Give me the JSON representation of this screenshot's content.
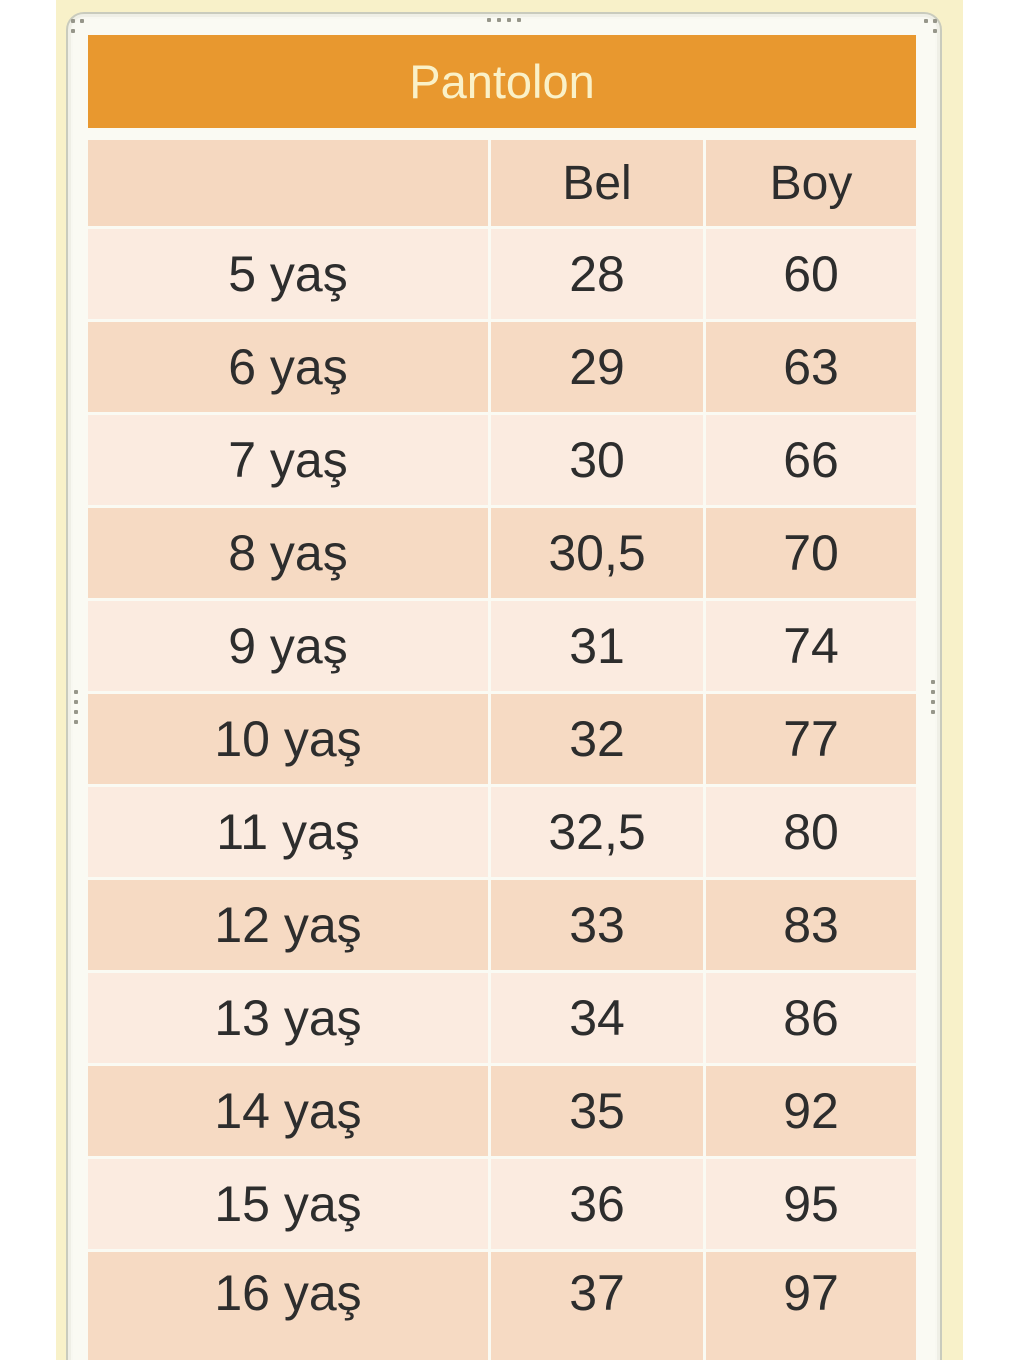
{
  "colors": {
    "accent_orange": "#e8982f",
    "title_text": "#faf1c8",
    "row_light": "#fbebe0",
    "row_dark": "#f6dac3",
    "header_row": "#f5d8c0",
    "page_band_yellow": "#f8f1c9",
    "frame_border": "#c9cbbd",
    "body_text": "#2d2d2d"
  },
  "frame": {
    "handles": [
      "top-left-corner",
      "top-center",
      "top-right-corner",
      "left-middle",
      "right-middle"
    ]
  },
  "table": {
    "title": "Pantolon",
    "columns": {
      "age": "",
      "bel": "Bel",
      "boy": "Boy"
    },
    "rows": [
      {
        "age": "5 yaş",
        "bel": "28",
        "boy": "60"
      },
      {
        "age": "6 yaş",
        "bel": "29",
        "boy": "63"
      },
      {
        "age": "7 yaş",
        "bel": "30",
        "boy": "66"
      },
      {
        "age": "8 yaş",
        "bel": "30,5",
        "boy": "70"
      },
      {
        "age": "9 yaş",
        "bel": "31",
        "boy": "74"
      },
      {
        "age": "10 yaş",
        "bel": "32",
        "boy": "77"
      },
      {
        "age": "11 yaş",
        "bel": "32,5",
        "boy": "80"
      },
      {
        "age": "12 yaş",
        "bel": "33",
        "boy": "83"
      },
      {
        "age": "13 yaş",
        "bel": "34",
        "boy": "86"
      },
      {
        "age": "14 yaş",
        "bel": "35",
        "boy": "92"
      },
      {
        "age": "15 yaş",
        "bel": "36",
        "boy": "95"
      },
      {
        "age": "16 yaş",
        "bel": "37",
        "boy": "97"
      }
    ]
  }
}
